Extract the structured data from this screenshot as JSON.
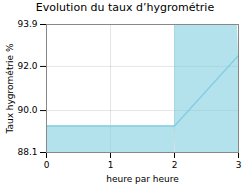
{
  "chart_data": {
    "type": "area",
    "title": "Evolution du taux d’hygrométrie",
    "xlabel": "heure par heure",
    "ylabel": "Taux hygrométrie %",
    "x": [
      0,
      2,
      2,
      3
    ],
    "values": [
      89.3,
      89.3,
      89.3,
      92.5
    ],
    "color": "#82cfe0",
    "xlim": [
      0,
      3
    ],
    "xticks": [
      0,
      1,
      2,
      3
    ],
    "ylim": [
      88.1,
      93.9
    ],
    "yticks": [
      88.1,
      {
        "value": 90.0,
        "label": "90.0"
      },
      {
        "value": 92.0,
        "label": "92.0"
      },
      93.9
    ],
    "grid": true
  }
}
